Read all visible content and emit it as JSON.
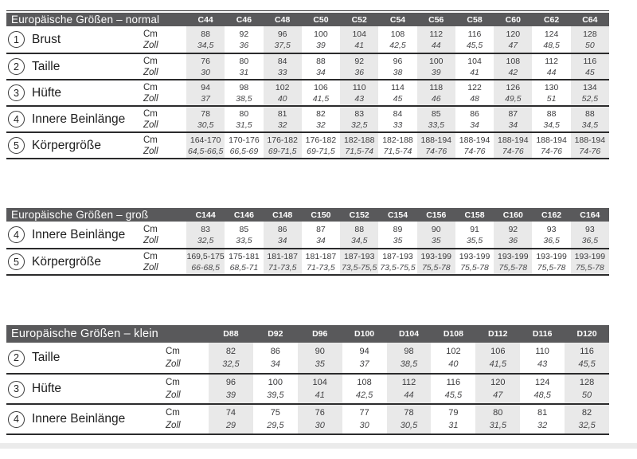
{
  "styles": {
    "header_bg": "#59595b",
    "stripe_bg": "#e9e9e9",
    "line_color": "#2b2b2c"
  },
  "unit_row_labels": {
    "cm": "Cm",
    "zoll": "Zoll"
  },
  "tables": [
    {
      "id": "normal",
      "title": "Europäische Größen – normal",
      "columns": [
        "C44",
        "C46",
        "C48",
        "C50",
        "C52",
        "C54",
        "C56",
        "C58",
        "C60",
        "C62",
        "C64"
      ],
      "rows": [
        {
          "num": "1",
          "label": "Brust",
          "cm": [
            "88",
            "92",
            "96",
            "100",
            "104",
            "108",
            "112",
            "116",
            "120",
            "124",
            "128"
          ],
          "zoll": [
            "34,5",
            "36",
            "37,5",
            "39",
            "41",
            "42,5",
            "44",
            "45,5",
            "47",
            "48,5",
            "50"
          ]
        },
        {
          "num": "2",
          "label": "Taille",
          "cm": [
            "76",
            "80",
            "84",
            "88",
            "92",
            "96",
            "100",
            "104",
            "108",
            "112",
            "116"
          ],
          "zoll": [
            "30",
            "31",
            "33",
            "34",
            "36",
            "38",
            "39",
            "41",
            "42",
            "44",
            "45"
          ]
        },
        {
          "num": "3",
          "label": "Hüfte",
          "cm": [
            "94",
            "98",
            "102",
            "106",
            "110",
            "114",
            "118",
            "122",
            "126",
            "130",
            "134"
          ],
          "zoll": [
            "37",
            "38,5",
            "40",
            "41,5",
            "43",
            "45",
            "46",
            "48",
            "49,5",
            "51",
            "52,5"
          ]
        },
        {
          "num": "4",
          "label": "Innere Beinlänge",
          "cm": [
            "78",
            "80",
            "81",
            "82",
            "83",
            "84",
            "85",
            "86",
            "87",
            "88",
            "88"
          ],
          "zoll": [
            "30,5",
            "31,5",
            "32",
            "32",
            "32,5",
            "33",
            "33,5",
            "34",
            "34",
            "34,5",
            "34,5"
          ]
        },
        {
          "num": "5",
          "label": "Körpergröße",
          "cm": [
            "164-170",
            "170-176",
            "176-182",
            "176-182",
            "182-188",
            "182-188",
            "188-194",
            "188-194",
            "188-194",
            "188-194",
            "188-194"
          ],
          "zoll": [
            "64,5-66,5",
            "66,5-69",
            "69-71,5",
            "69-71,5",
            "71,5-74",
            "71,5-74",
            "74-76",
            "74-76",
            "74-76",
            "74-76",
            "74-76"
          ]
        }
      ]
    },
    {
      "id": "gross",
      "title": "Europäische Größen – groß",
      "columns": [
        "C144",
        "C146",
        "C148",
        "C150",
        "C152",
        "C154",
        "C156",
        "C158",
        "C160",
        "C162",
        "C164"
      ],
      "rows": [
        {
          "num": "4",
          "label": "Innere Beinlänge",
          "cm": [
            "83",
            "85",
            "86",
            "87",
            "88",
            "89",
            "90",
            "91",
            "92",
            "93",
            "93"
          ],
          "zoll": [
            "32,5",
            "33,5",
            "34",
            "34",
            "34,5",
            "35",
            "35",
            "35,5",
            "36",
            "36,5",
            "36,5"
          ]
        },
        {
          "num": "5",
          "label": "Körpergröße",
          "cm": [
            "169,5-175",
            "175-181",
            "181-187",
            "181-187",
            "187-193",
            "187-193",
            "193-199",
            "193-199",
            "193-199",
            "193-199",
            "193-199"
          ],
          "zoll": [
            "66-68,5",
            "68,5-71",
            "71-73,5",
            "71-73,5",
            "73,5-75,5",
            "73,5-75,5",
            "75,5-78",
            "75,5-78",
            "75,5-78",
            "75,5-78",
            "75,5-78"
          ]
        }
      ]
    },
    {
      "id": "klein",
      "title": "Europäische Größen – klein",
      "columns": [
        "D88",
        "D92",
        "D96",
        "D100",
        "D104",
        "D108",
        "D112",
        "D116",
        "D120"
      ],
      "rows": [
        {
          "num": "2",
          "label": "Taille",
          "cm": [
            "82",
            "86",
            "90",
            "94",
            "98",
            "102",
            "106",
            "110",
            "116"
          ],
          "zoll": [
            "32,5",
            "34",
            "35",
            "37",
            "38,5",
            "40",
            "41,5",
            "43",
            "45,5"
          ]
        },
        {
          "num": "3",
          "label": "Hüfte",
          "cm": [
            "96",
            "100",
            "104",
            "108",
            "112",
            "116",
            "120",
            "124",
            "128"
          ],
          "zoll": [
            "39",
            "39,5",
            "41",
            "42,5",
            "44",
            "45,5",
            "47",
            "48,5",
            "50"
          ]
        },
        {
          "num": "4",
          "label": "Innere Beinlänge",
          "cm": [
            "74",
            "75",
            "76",
            "77",
            "78",
            "79",
            "80",
            "81",
            "82"
          ],
          "zoll": [
            "29",
            "29,5",
            "30",
            "30",
            "30,5",
            "31",
            "31,5",
            "32",
            "32,5"
          ]
        }
      ]
    }
  ]
}
